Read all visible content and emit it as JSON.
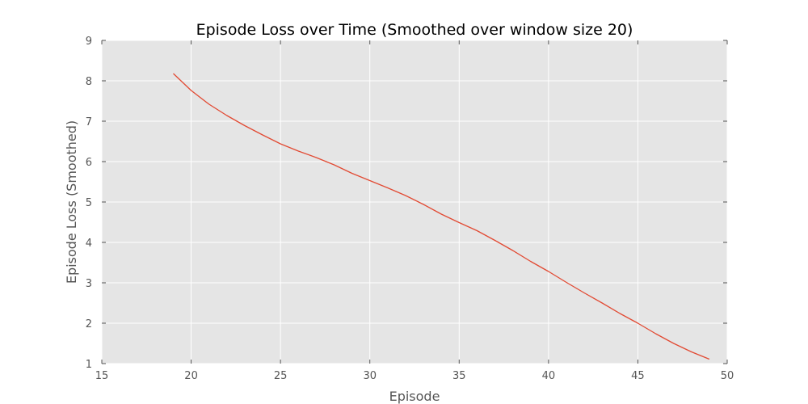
{
  "chart_data": {
    "type": "line",
    "title": "Episode Loss over Time (Smoothed over window size 20)",
    "xlabel": "Episode",
    "ylabel": "Episode Loss (Smoothed)",
    "xlim": [
      15,
      50
    ],
    "ylim": [
      1,
      9
    ],
    "xticks": [
      15,
      20,
      25,
      30,
      35,
      40,
      45,
      50
    ],
    "yticks": [
      1,
      2,
      3,
      4,
      5,
      6,
      7,
      8,
      9
    ],
    "grid": true,
    "background_color": "#e5e5e5",
    "series": [
      {
        "color": "#e24a33",
        "x": [
          19,
          20,
          21,
          22,
          23,
          24,
          25,
          26,
          27,
          28,
          29,
          30,
          31,
          32,
          33,
          34,
          35,
          36,
          37,
          38,
          39,
          40,
          41,
          42,
          43,
          44,
          45,
          46,
          47,
          48,
          49
        ],
        "y": [
          8.18,
          7.76,
          7.42,
          7.14,
          6.89,
          6.66,
          6.44,
          6.26,
          6.1,
          5.92,
          5.71,
          5.53,
          5.35,
          5.16,
          4.94,
          4.7,
          4.49,
          4.29,
          4.05,
          3.8,
          3.53,
          3.28,
          3.01,
          2.75,
          2.5,
          2.24,
          2.0,
          1.74,
          1.5,
          1.29,
          1.11
        ]
      }
    ]
  }
}
